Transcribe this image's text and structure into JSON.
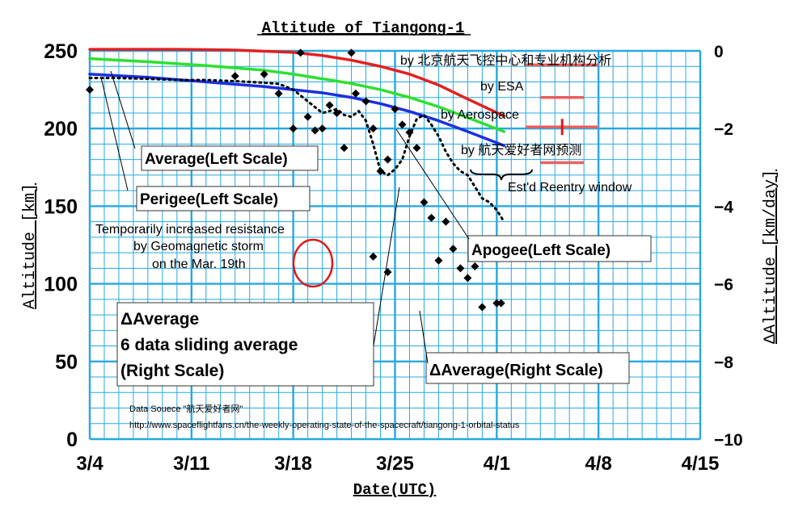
{
  "chart_data": {
    "type": "line",
    "title": "Altitude of Tiangong-1",
    "xlabel": "Date(UTC)",
    "ylabel": "Altitude [km]",
    "y2label": "ΔAltitude [km/day]",
    "x_ticks": [
      "3/4",
      "3/11",
      "3/18",
      "3/25",
      "4/1",
      "4/8",
      "4/15"
    ],
    "xlim": [
      0,
      42
    ],
    "ylim": [
      0,
      250
    ],
    "y_ticks": [
      "0",
      "50",
      "100",
      "150",
      "200",
      "250"
    ],
    "y2lim": [
      -10,
      0
    ],
    "y2_ticks": [
      "0",
      "−2",
      "−4",
      "−6",
      "−8",
      "−10"
    ],
    "grid": true,
    "colors": {
      "apogee": "#e32020",
      "average": "#2ee02e",
      "perigee": "#1c2ee0",
      "delta_sliding": "#000000",
      "delta": "#000000",
      "grid": "#27a8e0",
      "windows": "#e86060",
      "circle": "#e01818"
    },
    "series": [
      {
        "name": "Apogee(Left Scale)",
        "axis": "left",
        "style": "line",
        "x": [
          0,
          6,
          10,
          14,
          16,
          18,
          20,
          22,
          24,
          26,
          28.5
        ],
        "y": [
          251,
          251,
          250.5,
          249,
          247,
          244,
          240,
          235,
          228,
          219,
          208
        ]
      },
      {
        "name": "Average(Left Scale)",
        "axis": "left",
        "style": "line",
        "x": [
          0,
          4,
          8,
          12,
          14,
          16,
          18,
          20,
          22,
          24,
          26,
          28.5
        ],
        "y": [
          245,
          243,
          240.5,
          237.5,
          235,
          232,
          229,
          225,
          220,
          214,
          207,
          198
        ]
      },
      {
        "name": "Perigee(Left Scale)",
        "axis": "left",
        "style": "line",
        "x": [
          0,
          4,
          8,
          12,
          14,
          16,
          18,
          20,
          22,
          24,
          26,
          28.5
        ],
        "y": [
          235,
          233,
          230,
          227,
          225,
          223,
          220,
          216,
          211,
          205,
          198,
          189
        ]
      },
      {
        "name": "ΔAverage 6 data sliding average (Right Scale)",
        "axis": "right",
        "style": "dotted",
        "x": [
          0,
          2,
          4,
          6,
          8,
          10,
          11,
          12,
          13,
          14,
          15,
          16,
          17,
          17.5,
          18,
          18.5,
          19,
          19.5,
          20,
          20.5,
          21,
          21.5,
          22,
          22.5,
          23,
          23.5,
          24,
          24.5,
          25,
          25.5,
          26,
          26.5,
          27,
          27.5,
          28,
          28.5
        ],
        "y": [
          -0.7,
          -0.7,
          -0.72,
          -0.75,
          -0.75,
          -0.78,
          -0.8,
          -0.82,
          -0.85,
          -1.0,
          -1.3,
          -1.6,
          -1.5,
          -1.65,
          -1.7,
          -1.55,
          -1.8,
          -2.4,
          -3.1,
          -3.2,
          -3.05,
          -2.8,
          -2.2,
          -1.75,
          -1.65,
          -1.9,
          -2.2,
          -2.6,
          -2.9,
          -3.1,
          -3.2,
          -3.5,
          -3.8,
          -3.9,
          -4.1,
          -4.4
        ]
      },
      {
        "name": "ΔAverage(Right Scale)",
        "axis": "right",
        "style": "markers",
        "x": [
          0,
          10,
          12,
          13,
          14,
          14.5,
          15,
          15.5,
          16,
          16.5,
          17,
          17.5,
          18,
          18.3,
          19,
          19.5,
          20,
          20.5,
          21,
          21.5,
          22,
          22.5,
          23,
          23.5,
          24,
          24.5,
          25,
          25.5,
          26,
          26.5,
          27,
          28,
          28.3
        ],
        "y": [
          -1.0,
          -0.65,
          -0.6,
          -1.1,
          -2.0,
          -0.05,
          -1.7,
          -2.05,
          -2.0,
          -1.4,
          -1.6,
          -2.5,
          -0.05,
          -1.1,
          -1.3,
          -2.0,
          -3.1,
          -2.8,
          -1.5,
          -1.9,
          -2.1,
          -2.5,
          -3.9,
          -4.3,
          -5.4,
          -4.4,
          -5.1,
          -5.6,
          -5.85,
          -5.55,
          -6.6,
          -6.5,
          -6.5
        ]
      }
    ],
    "geomagnetic_storm_points": {
      "x": [
        19.5,
        20.5
      ],
      "y": [
        -5.3,
        -5.7
      ]
    },
    "reentry_windows": [
      {
        "name": "by 北京航天飞控中心和专业机构分析",
        "start": 30,
        "end": 35,
        "y_pos": 241,
        "marker": 32.5
      },
      {
        "name": "by ESA",
        "start": 31,
        "end": 34,
        "y_pos": 220,
        "marker": 32.7
      },
      {
        "name": "by Aerospace",
        "start": 30,
        "end": 35,
        "y_pos": 201,
        "marker": 32.5
      },
      {
        "name": "by 航天爱好者网预测",
        "start": 31,
        "end": 34,
        "y_pos": 178,
        "marker": 33.1
      }
    ],
    "annotations": {
      "estd_window": "Est'd Reentry window",
      "storm": [
        "Temporarily increased resistance",
        "by Geomagnetic storm",
        "on the Mar. 19th"
      ],
      "source_line1": "Data Souece \"航天爱好者网\"",
      "source_line2": "http://www.spaceflightfans.cn/the-weekly-operating-state-of-the-spacecraft/tiangong-1-orbital-status"
    },
    "legend_boxes": {
      "average": "Average(Left Scale)",
      "perigee": "Perigee(Left Scale)",
      "apogee": "Apogee(Left Scale)",
      "delta_sliding": [
        "ΔAverage",
        "6 data sliding average",
        "(Right Scale)"
      ],
      "delta": "ΔAverage(Right Scale)"
    }
  }
}
